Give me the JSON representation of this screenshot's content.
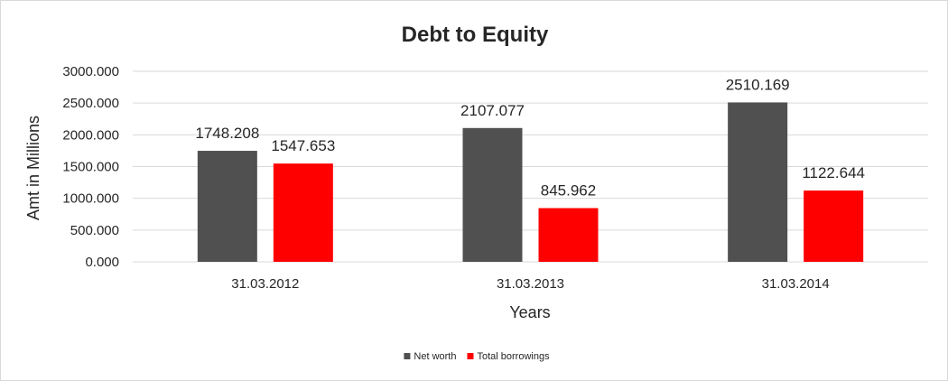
{
  "chart_data": {
    "type": "bar",
    "title": "Debt to Equity",
    "xlabel": "Years",
    "ylabel": "Amt in Millions",
    "categories": [
      "31.03.2012",
      "31.03.2013",
      "31.03.2014"
    ],
    "series": [
      {
        "name": "Net worth",
        "color": "#505050",
        "values": [
          1748.208,
          2107.077,
          2510.169
        ],
        "labels": [
          "1748.208",
          "2107.077",
          "2510.169"
        ]
      },
      {
        "name": "Total borrowings",
        "color": "#ff0000",
        "values": [
          1547.653,
          845.962,
          1122.644
        ],
        "labels": [
          "1547.653",
          "845.962",
          "1122.644"
        ]
      }
    ],
    "ylim": [
      0,
      3000
    ],
    "yticks": [
      "0.000",
      "500.000",
      "1000.000",
      "1500.000",
      "2000.000",
      "2500.000",
      "3000.000"
    ],
    "grid": true,
    "legend_position": "bottom"
  }
}
